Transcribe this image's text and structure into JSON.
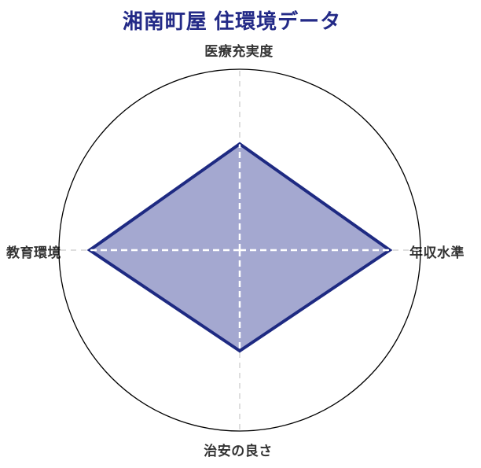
{
  "title": "湘南町屋 住環境データ",
  "chart_data": {
    "type": "radar",
    "title": "湘南町屋 住環境データ",
    "categories": [
      "医療充実度",
      "年収水準",
      "治安の良さ",
      "教育環境"
    ],
    "category_positions": [
      "top",
      "right",
      "bottom",
      "left"
    ],
    "values": [
      2.9,
      4.2,
      2.8,
      4.2
    ],
    "scale_max": 5,
    "fraction_of_max": [
      0.587,
      0.83,
      0.557,
      0.83
    ],
    "axis_count": 4,
    "legend": "none",
    "grid": "single outer circle with dashed cross axes",
    "colors": {
      "background": "#ffffff",
      "title_text": "#232a87",
      "label_text": "#333333",
      "polygon_fill": "#a4a8d0",
      "polygon_stroke": "#1e2a82",
      "outer_circle_stroke": "#000000",
      "axis_dash_outside": "#dedede",
      "axis_dash_inside": "#ffffff"
    }
  }
}
